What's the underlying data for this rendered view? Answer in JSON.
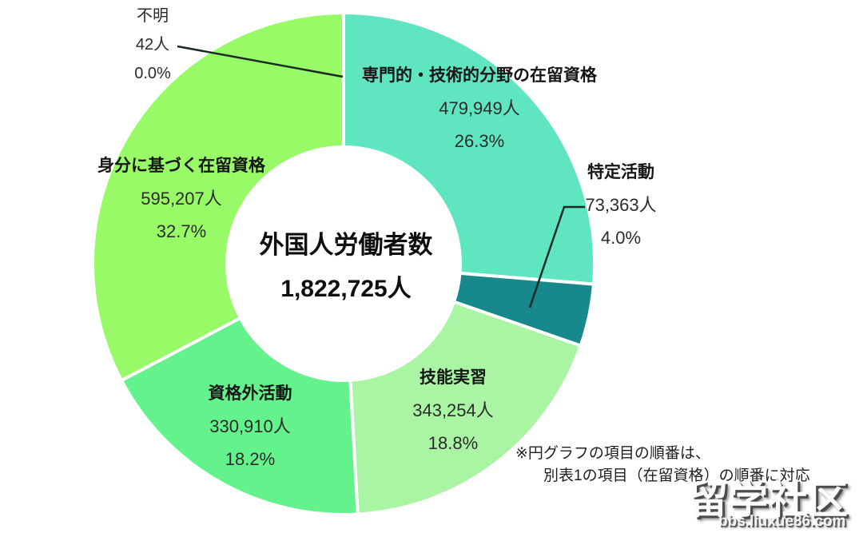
{
  "chart_data": {
    "type": "pie",
    "subtype": "donut",
    "direction": "clockwise",
    "start_angle_deg": 0,
    "center_label": "外国人労働者数",
    "center_value": "1,822,725人",
    "total": 1822725,
    "segments": [
      {
        "name": "専門的・技術的分野の在留資格",
        "value": 479949,
        "value_label": "479,949人",
        "percent": 26.3,
        "percent_label": "26.3%",
        "color": "#5FE5BF"
      },
      {
        "name": "特定活動",
        "value": 73363,
        "value_label": "73,363人",
        "percent": 4.0,
        "percent_label": "4.0%",
        "color": "#17898D"
      },
      {
        "name": "技能実習",
        "value": 343254,
        "value_label": "343,254人",
        "percent": 18.8,
        "percent_label": "18.8%",
        "color": "#A9F5A3"
      },
      {
        "name": "資格外活動",
        "value": 330910,
        "value_label": "330,910人",
        "percent": 18.2,
        "percent_label": "18.2%",
        "color": "#63F28B"
      },
      {
        "name": "身分に基づく在留資格",
        "value": 595207,
        "value_label": "595,207人",
        "percent": 32.7,
        "percent_label": "32.7%",
        "color": "#99FA68"
      },
      {
        "name": "不明",
        "value": 42,
        "value_label": "42人",
        "percent": 0.0,
        "percent_label": "0.0%",
        "color": "#99FA68"
      }
    ],
    "note_line1": "※円グラフの項目の順番は、",
    "note_line2": "別表1の項目（在留資格）の順番に対応",
    "colors": {
      "slice_border": "#ffffff",
      "leader_line": "#1b2a26"
    }
  },
  "watermark": {
    "title": "留学社区",
    "url": "bbs.liuxue86.com"
  }
}
